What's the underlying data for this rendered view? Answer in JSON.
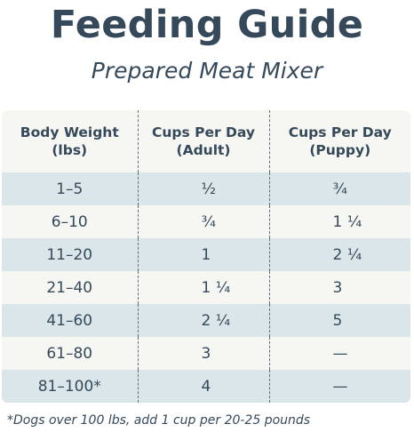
{
  "title": "Feeding Guide",
  "subtitle": "Prepared Meat Mixer",
  "table": {
    "headers": [
      {
        "line1": "Body Weight",
        "line2": "(lbs)"
      },
      {
        "line1": "Cups Per Day",
        "line2": "(Adult)"
      },
      {
        "line1": "Cups Per Day",
        "line2": "(Puppy)"
      }
    ],
    "rows": [
      {
        "weight": "1–5",
        "adult": "½",
        "puppy": "¾"
      },
      {
        "weight": "6–10",
        "adult": "¾",
        "puppy": "1 ¼"
      },
      {
        "weight": "11–20",
        "adult": "1",
        "puppy": "2 ¼"
      },
      {
        "weight": "21–40",
        "adult": "1 ¼",
        "puppy": "3"
      },
      {
        "weight": "41–60",
        "adult": "2 ¼",
        "puppy": "5"
      },
      {
        "weight": "61–80",
        "adult": "3",
        "puppy": "—"
      },
      {
        "weight": "81–100*",
        "adult": "4",
        "puppy": "—"
      }
    ]
  },
  "footnote": "*Dogs over 100 lbs, add 1 cup per 20-25 pounds",
  "colors": {
    "text": "#35495a",
    "row_light": "#f6f6f2",
    "row_blue": "#dae6ea"
  }
}
